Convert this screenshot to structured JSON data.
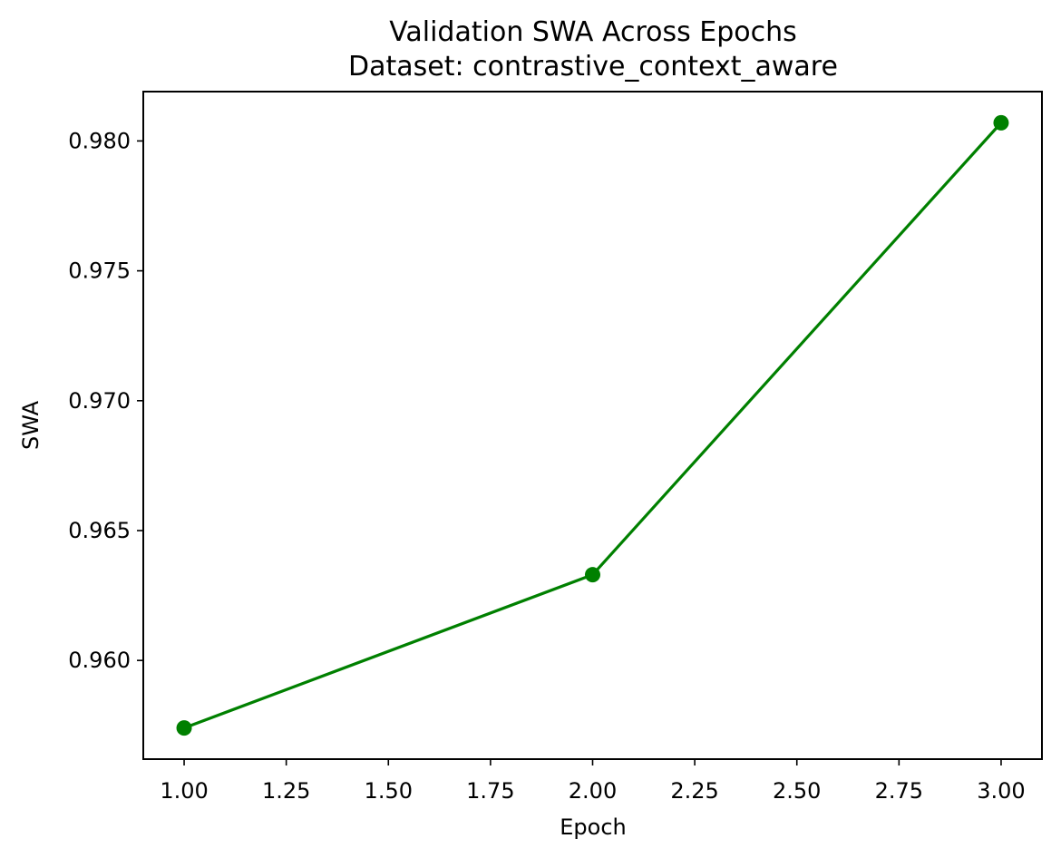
{
  "chart_data": {
    "type": "line",
    "title": "Validation SWA Across Epochs",
    "subtitle": "Dataset: contrastive_context_aware",
    "xlabel": "Epoch",
    "ylabel": "SWA",
    "x": [
      1,
      2,
      3
    ],
    "series": [
      {
        "values": [
          0.9574,
          0.9633,
          0.9807
        ],
        "color": "#008000",
        "marker": "circle"
      }
    ],
    "xlim": [
      0.9,
      3.1
    ],
    "ylim": [
      0.9562,
      0.9819
    ],
    "xticks": [
      1.0,
      1.25,
      1.5,
      1.75,
      2.0,
      2.25,
      2.5,
      2.75,
      3.0
    ],
    "xtick_labels": [
      "1.00",
      "1.25",
      "1.50",
      "1.75",
      "2.00",
      "2.25",
      "2.50",
      "2.75",
      "3.00"
    ],
    "yticks": [
      0.96,
      0.965,
      0.97,
      0.975,
      0.98
    ],
    "ytick_labels": [
      "0.960",
      "0.965",
      "0.970",
      "0.975",
      "0.980"
    ],
    "grid": false,
    "legend": "none"
  }
}
